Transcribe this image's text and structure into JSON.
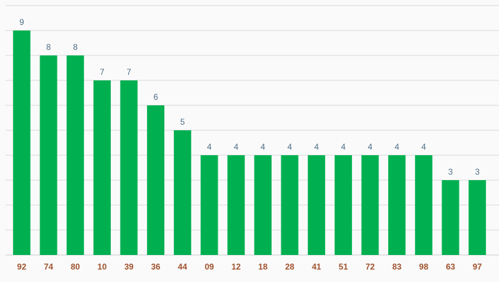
{
  "chart_data": {
    "type": "bar",
    "categories": [
      "92",
      "74",
      "80",
      "10",
      "39",
      "36",
      "44",
      "09",
      "12",
      "18",
      "28",
      "41",
      "51",
      "72",
      "83",
      "98",
      "63",
      "97"
    ],
    "values": [
      9,
      8,
      8,
      7,
      7,
      6,
      5,
      4,
      4,
      4,
      4,
      4,
      4,
      4,
      4,
      4,
      3,
      3
    ],
    "title": "",
    "xlabel": "",
    "ylabel": "",
    "ylim": [
      0,
      9
    ],
    "grid": true,
    "legend": "none",
    "colors": {
      "bar": "#00b050",
      "value_label": "#4f6f86",
      "category_label": "#a0522d",
      "grid": "#d9d9d9"
    }
  }
}
